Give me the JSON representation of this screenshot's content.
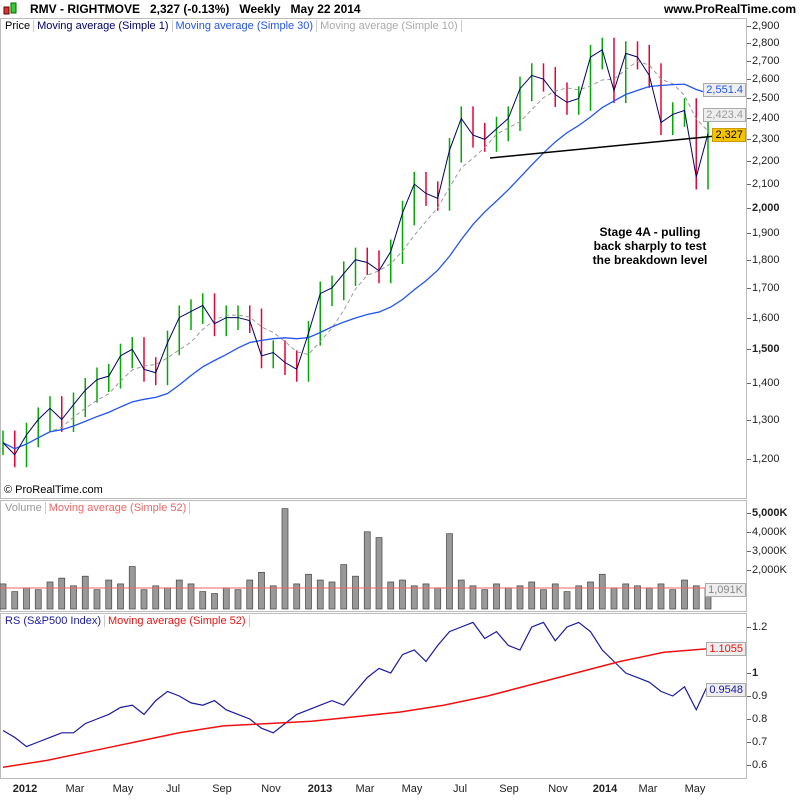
{
  "header": {
    "symbol": "RMV - RIGHTMOVE",
    "last": "2,327 (-0.13%)",
    "period": "Weekly",
    "date": "May 22 2014",
    "site": "www.ProRealTime.com"
  },
  "price_legend": [
    "Price",
    "Moving average (Simple 1)",
    "Moving average (Simple 30)",
    "Moving average (Simple 10)"
  ],
  "volume_legend": [
    "Volume",
    "Moving average (Simple 52)"
  ],
  "rs_legend": [
    "RS (S&P500 Index)",
    "Moving average (Simple 52)"
  ],
  "copyright": "© ProRealTime.com",
  "annotation": "Stage 4A - pulling back sharply to test the breakdown level",
  "badges": {
    "ma30": "2,551.4",
    "ma10": "2,423.4",
    "last": "2,327",
    "vol": "1,091K",
    "rs_ma": "1.1055",
    "rs": "0.9548"
  },
  "colors": {
    "up": "#00aa00",
    "down": "#ee0033",
    "ma1": "#000066",
    "ma30": "#2255ee",
    "ma10": "#999999",
    "rs": "#1a1aa0",
    "rs_ma": "#ee1111"
  },
  "chart_data": {
    "type": "line",
    "title": "RMV - RIGHTMOVE Weekly",
    "x_ticks": [
      "2012",
      "Mar",
      "May",
      "Jul",
      "Sep",
      "Nov",
      "2013",
      "Mar",
      "May",
      "Jul",
      "Sep",
      "Nov",
      "2014",
      "Mar",
      "May"
    ],
    "price": {
      "scale": "log",
      "yticks": [
        "2,900",
        "2,800",
        "2,700",
        "2,600",
        "2,500",
        "2,400",
        "2,300",
        "2,200",
        "2,100",
        "2,000",
        "1,900",
        "1,800",
        "1,700",
        "1,600",
        "1,500",
        "1,400",
        "1,300",
        "1,200"
      ],
      "closes": [
        1240,
        1210,
        1260,
        1300,
        1330,
        1300,
        1340,
        1380,
        1410,
        1420,
        1480,
        1500,
        1440,
        1430,
        1520,
        1600,
        1620,
        1640,
        1580,
        1600,
        1600,
        1590,
        1480,
        1490,
        1460,
        1440,
        1550,
        1680,
        1700,
        1750,
        1800,
        1790,
        1760,
        1830,
        1980,
        2100,
        2060,
        2040,
        2250,
        2400,
        2320,
        2300,
        2350,
        2400,
        2550,
        2620,
        2600,
        2520,
        2480,
        2500,
        2720,
        2760,
        2540,
        2740,
        2720,
        2620,
        2380,
        2420,
        2440,
        2130,
        2327
      ]
    },
    "volume": {
      "yticks": [
        "5,000K",
        "4,000K",
        "3,000K",
        "2,000K"
      ],
      "values_k": [
        1300,
        900,
        1100,
        1000,
        1400,
        1600,
        1200,
        1700,
        1000,
        1500,
        1300,
        2200,
        1000,
        1200,
        1100,
        1500,
        1300,
        900,
        800,
        1100,
        1000,
        1500,
        1900,
        1200,
        5200,
        1300,
        1800,
        1500,
        1400,
        2300,
        1700,
        4000,
        3700,
        1400,
        1500,
        1200,
        1300,
        1100,
        3900,
        1500,
        1200,
        1000,
        1300,
        1100,
        1200,
        1400,
        1000,
        1300,
        900,
        1200,
        1400,
        1800,
        1100,
        1300,
        1200,
        1100,
        1300,
        1000,
        1500,
        1200,
        1091
      ],
      "ma_k": 1091
    },
    "rs": {
      "yticks": [
        "1.2",
        "1",
        "0.9",
        "0.8",
        "0.7",
        "0.6"
      ],
      "values": [
        0.75,
        0.72,
        0.68,
        0.7,
        0.72,
        0.74,
        0.74,
        0.78,
        0.8,
        0.82,
        0.85,
        0.86,
        0.82,
        0.88,
        0.92,
        0.9,
        0.87,
        0.86,
        0.88,
        0.84,
        0.82,
        0.8,
        0.76,
        0.74,
        0.78,
        0.82,
        0.84,
        0.86,
        0.88,
        0.86,
        0.92,
        0.98,
        1.02,
        1.0,
        1.08,
        1.1,
        1.05,
        1.12,
        1.18,
        1.2,
        1.22,
        1.15,
        1.18,
        1.12,
        1.1,
        1.2,
        1.22,
        1.14,
        1.2,
        1.22,
        1.18,
        1.1,
        1.05,
        1.0,
        0.98,
        0.96,
        0.92,
        0.9,
        0.94,
        0.84,
        0.95
      ],
      "ma": [
        0.59,
        0.62,
        0.66,
        0.7,
        0.74,
        0.77,
        0.78,
        0.79,
        0.81,
        0.83,
        0.86,
        0.9,
        0.95,
        1.0,
        1.05,
        1.09,
        1.1055
      ]
    }
  }
}
